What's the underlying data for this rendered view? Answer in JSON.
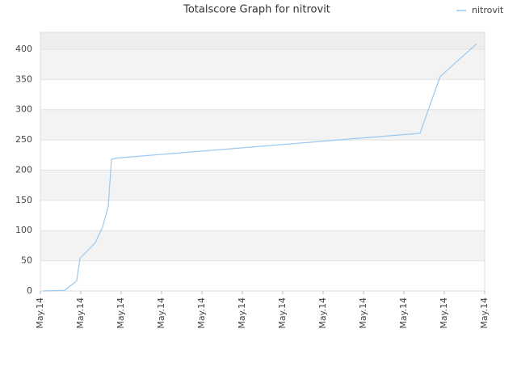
{
  "chart_data": {
    "type": "line",
    "title": "Totalscore Graph for nitrovit",
    "series": [
      {
        "name": "nitrovit",
        "color": "#99c9f2",
        "x": [
          0.06,
          0.6,
          0.9,
          0.98,
          1.36,
          1.54,
          1.68,
          1.76,
          1.9,
          9.4,
          9.7,
          9.9,
          10.8
        ],
        "values": [
          0,
          1,
          17,
          54,
          80,
          106,
          140,
          218,
          220,
          261,
          318,
          355,
          409
        ]
      }
    ],
    "xlim": [
      0,
      11
    ],
    "xticks": [
      {
        "value": 0,
        "label": "May.14"
      },
      {
        "value": 1,
        "label": "May.14"
      },
      {
        "value": 2,
        "label": "May.14"
      },
      {
        "value": 3,
        "label": "May.14"
      },
      {
        "value": 4,
        "label": "May.14"
      },
      {
        "value": 5,
        "label": "May.14"
      },
      {
        "value": 6,
        "label": "May.14"
      },
      {
        "value": 7,
        "label": "May.14"
      },
      {
        "value": 8,
        "label": "May.14"
      },
      {
        "value": 9,
        "label": "May.14"
      },
      {
        "value": 10,
        "label": "May.14"
      },
      {
        "value": 11,
        "label": "May.14"
      }
    ],
    "ylim": [
      0,
      428
    ],
    "yticks": [
      0,
      50,
      100,
      150,
      200,
      250,
      300,
      350,
      400
    ],
    "grid": true
  }
}
